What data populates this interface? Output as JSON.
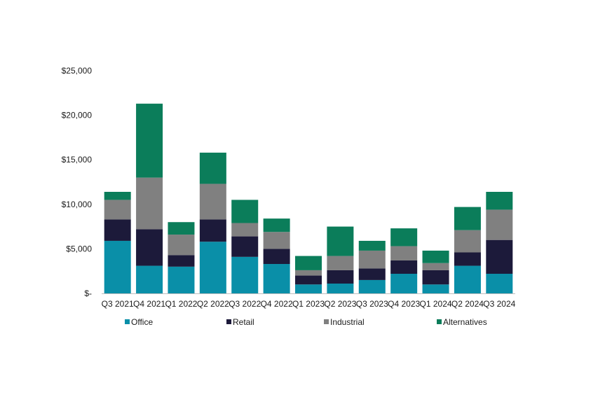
{
  "colors": {
    "Office": "#0a8fa8",
    "Retail": "#1c1a3a",
    "Industrial": "#808080",
    "Alternatives": "#0b7d5a"
  },
  "chart_data": {
    "type": "bar",
    "stacked": true,
    "title": "",
    "xlabel": "",
    "ylabel": "",
    "categories": [
      "Q3 2021",
      "Q4 2021",
      "Q1 2022",
      "Q2 2022",
      "Q3 2022",
      "Q4 2022",
      "Q1 2023",
      "Q2 2023",
      "Q3 2023",
      "Q4 2023",
      "Q1 2024",
      "Q2 2024",
      "Q3 2024"
    ],
    "series": [
      {
        "name": "Office",
        "values": [
          5900,
          3100,
          3000,
          5800,
          4100,
          3300,
          1000,
          1100,
          1500,
          2200,
          1000,
          3100,
          2200
        ]
      },
      {
        "name": "Retail",
        "values": [
          2400,
          4100,
          1300,
          2500,
          2300,
          1700,
          1000,
          1500,
          1300,
          1500,
          1600,
          1500,
          3800
        ]
      },
      {
        "name": "Industrial",
        "values": [
          2200,
          5800,
          2300,
          4000,
          1500,
          1900,
          600,
          1600,
          2000,
          1600,
          800,
          2500,
          3400
        ]
      },
      {
        "name": "Alternatives",
        "values": [
          900,
          8300,
          1400,
          3500,
          2600,
          1500,
          1600,
          3300,
          1100,
          2000,
          1400,
          2600,
          2000
        ]
      }
    ],
    "ylim": [
      0,
      25000
    ],
    "yticks": [
      0,
      5000,
      10000,
      15000,
      20000,
      25000
    ],
    "ytick_labels": [
      "$-",
      "$5,000",
      "$10,000",
      "$15,000",
      "$20,000",
      "$25,000"
    ],
    "grid": false,
    "legend_position": "bottom"
  }
}
